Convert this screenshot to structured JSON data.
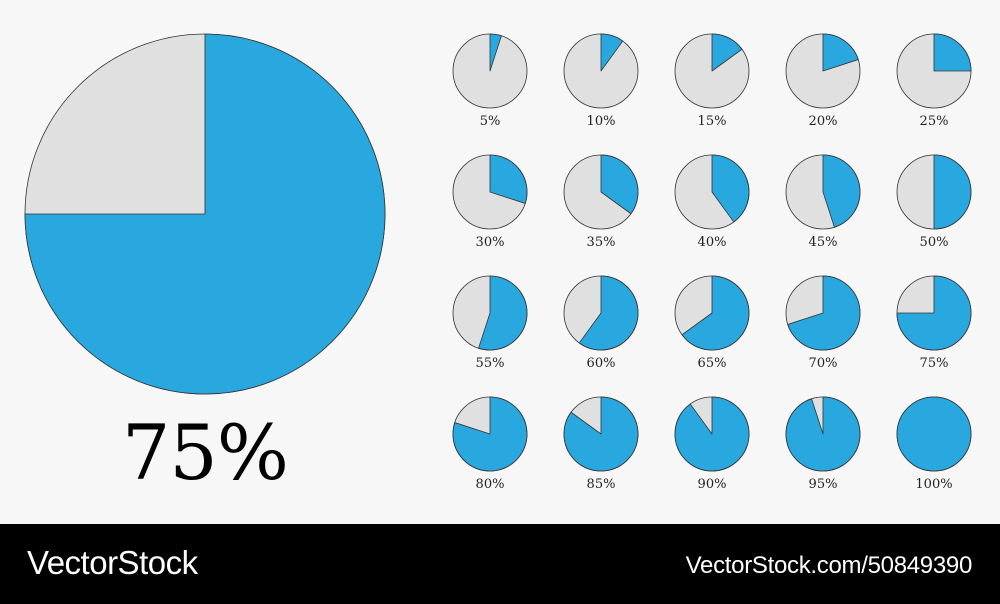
{
  "colors": {
    "filled": "#29a8e0",
    "empty": "#e0e0e0",
    "stroke": "#333333",
    "background": "#f7f7f7"
  },
  "chart_data": [
    {
      "type": "pie",
      "values": [
        75,
        25
      ],
      "label": "75%"
    },
    {
      "type": "pie",
      "values": [
        5,
        10,
        15,
        20,
        25,
        30,
        35,
        40,
        45,
        50,
        55,
        60,
        65,
        70,
        75,
        80,
        85,
        90,
        95,
        100
      ],
      "labels": [
        "5%",
        "10%",
        "15%",
        "20%",
        "25%",
        "30%",
        "35%",
        "40%",
        "45%",
        "50%",
        "55%",
        "60%",
        "65%",
        "70%",
        "75%",
        "80%",
        "85%",
        "90%",
        "95%",
        "100%"
      ]
    }
  ],
  "footer": {
    "brand": "VectorStock",
    "id": "VectorStock.com/50849390"
  }
}
